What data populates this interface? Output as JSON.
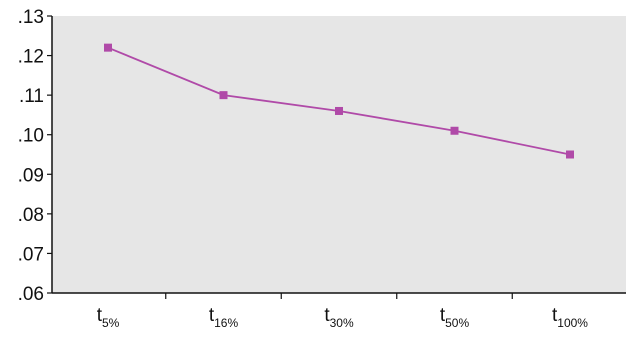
{
  "chart_data": {
    "type": "line",
    "title": "",
    "xlabel": "",
    "ylabel": "",
    "categories": [
      {
        "main": "t",
        "sub": "5%"
      },
      {
        "main": "t",
        "sub": "16%"
      },
      {
        "main": "t",
        "sub": "30%"
      },
      {
        "main": "t",
        "sub": "50%"
      },
      {
        "main": "t",
        "sub": "100%"
      }
    ],
    "series": [
      {
        "values": [
          0.122,
          0.11,
          0.106,
          0.101,
          0.095
        ],
        "color": "#b04aa8",
        "marker": "square"
      }
    ],
    "ylim": [
      0.06,
      0.13
    ],
    "yticks": [
      0.13,
      0.12,
      0.11,
      0.1,
      0.09,
      0.08,
      0.07,
      0.06
    ],
    "ytick_labels": [
      ".13",
      ".12",
      ".11",
      ".10",
      ".09",
      ".08",
      ".07",
      ".06"
    ],
    "plot_background": "#e6e6e6",
    "grid": false,
    "legend": "none"
  }
}
